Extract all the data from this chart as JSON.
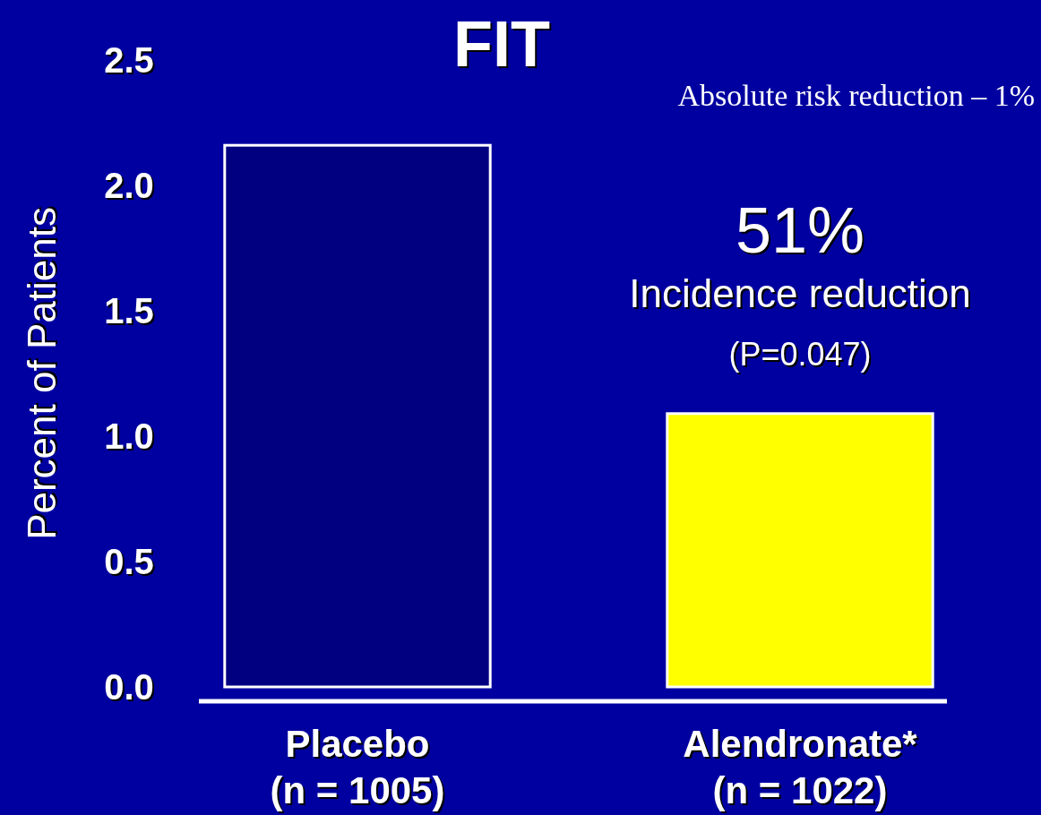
{
  "chart_data": {
    "type": "bar",
    "title": "FIT",
    "ylabel": "Percent of Patients",
    "categories": [
      "Placebo\n(n = 1005)",
      "Alendronate*\n(n = 1022)"
    ],
    "values": [
      2.16,
      1.09
    ],
    "colors": [
      "#000080",
      "#ffff00"
    ],
    "ylim": [
      0,
      2.5
    ],
    "yticks": [
      {
        "value": 0,
        "label": "0.0"
      },
      {
        "value": 0.5,
        "label": "0.5"
      },
      {
        "value": 1,
        "label": "1.0"
      },
      {
        "value": 1.5,
        "label": "1.5"
      },
      {
        "value": 2,
        "label": "2.0"
      },
      {
        "value": 2.5,
        "label": "2.5"
      }
    ],
    "grid": false,
    "annotations": [
      "Absolute risk reduction – 1%",
      "51%",
      "Incidence reduction",
      "(P=0.047)"
    ]
  }
}
